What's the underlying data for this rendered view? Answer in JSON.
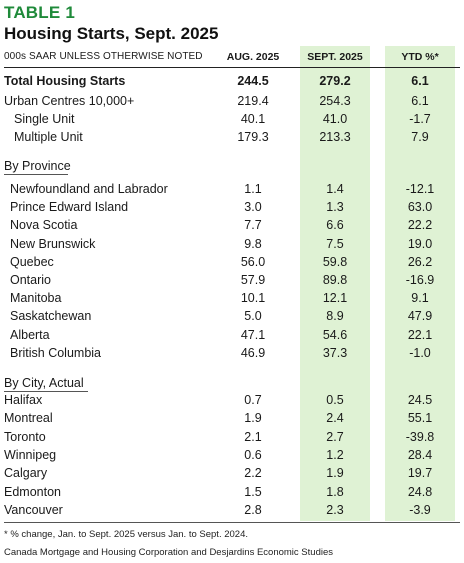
{
  "table": {
    "tag": "TABLE 1",
    "title": "Housing Starts, Sept. 2025",
    "units": "000s SAAR UNLESS OTHERWISE NOTED",
    "columns": [
      "AUG. 2025",
      "SEPT. 2025",
      "YTD %*"
    ]
  },
  "summary_rows": [
    {
      "label": "Total Housing Starts",
      "aug": "244.5",
      "sept": "279.2",
      "ytd": "6.1",
      "bold": true,
      "indent": 0
    },
    {
      "label": "Urban Centres 10,000+",
      "aug": "219.4",
      "sept": "254.3",
      "ytd": "6.1",
      "bold": false,
      "indent": 0
    },
    {
      "label": "Single Unit",
      "aug": "40.1",
      "sept": "41.0",
      "ytd": "-1.7",
      "bold": false,
      "indent": 1
    },
    {
      "label": "Multiple Unit",
      "aug": "179.3",
      "sept": "213.3",
      "ytd": "7.9",
      "bold": false,
      "indent": 1
    }
  ],
  "province_section": {
    "heading": "By Province",
    "rows": [
      {
        "label": "Newfoundland and Labrador",
        "aug": "1.1",
        "sept": "1.4",
        "ytd": "-12.1"
      },
      {
        "label": "Prince Edward Island",
        "aug": "3.0",
        "sept": "1.3",
        "ytd": "63.0"
      },
      {
        "label": "Nova Scotia",
        "aug": "7.7",
        "sept": "6.6",
        "ytd": "22.2"
      },
      {
        "label": "New Brunswick",
        "aug": "9.8",
        "sept": "7.5",
        "ytd": "19.0"
      },
      {
        "label": "Quebec",
        "aug": "56.0",
        "sept": "59.8",
        "ytd": "26.2"
      },
      {
        "label": "Ontario",
        "aug": "57.9",
        "sept": "89.8",
        "ytd": "-16.9"
      },
      {
        "label": "Manitoba",
        "aug": "10.1",
        "sept": "12.1",
        "ytd": "9.1"
      },
      {
        "label": "Saskatchewan",
        "aug": "5.0",
        "sept": "8.9",
        "ytd": "47.9"
      },
      {
        "label": "Alberta",
        "aug": "47.1",
        "sept": "54.6",
        "ytd": "22.1"
      },
      {
        "label": "British Columbia",
        "aug": "46.9",
        "sept": "37.3",
        "ytd": "-1.0"
      }
    ]
  },
  "city_section": {
    "heading": "By City, Actual",
    "rows": [
      {
        "label": "Halifax",
        "aug": "0.7",
        "sept": "0.5",
        "ytd": "24.5"
      },
      {
        "label": "Montreal",
        "aug": "1.9",
        "sept": "2.4",
        "ytd": "55.1"
      },
      {
        "label": "Toronto",
        "aug": "2.1",
        "sept": "2.7",
        "ytd": "-39.8"
      },
      {
        "label": "Winnipeg",
        "aug": "0.6",
        "sept": "1.2",
        "ytd": "28.4"
      },
      {
        "label": "Calgary",
        "aug": "2.2",
        "sept": "1.9",
        "ytd": "19.7"
      },
      {
        "label": "Edmonton",
        "aug": "1.5",
        "sept": "1.8",
        "ytd": "24.8"
      },
      {
        "label": "Vancouver",
        "aug": "2.8",
        "sept": "2.3",
        "ytd": "-3.9"
      }
    ]
  },
  "footnote": "* % change, Jan. to Sept. 2025 versus Jan. to Sept. 2024.",
  "source": "Canada Mortgage and Housing Corporation and Desjardins Economic Studies",
  "colors": {
    "accent": "#1f8a3a",
    "column_shade": "#dff2d4"
  }
}
